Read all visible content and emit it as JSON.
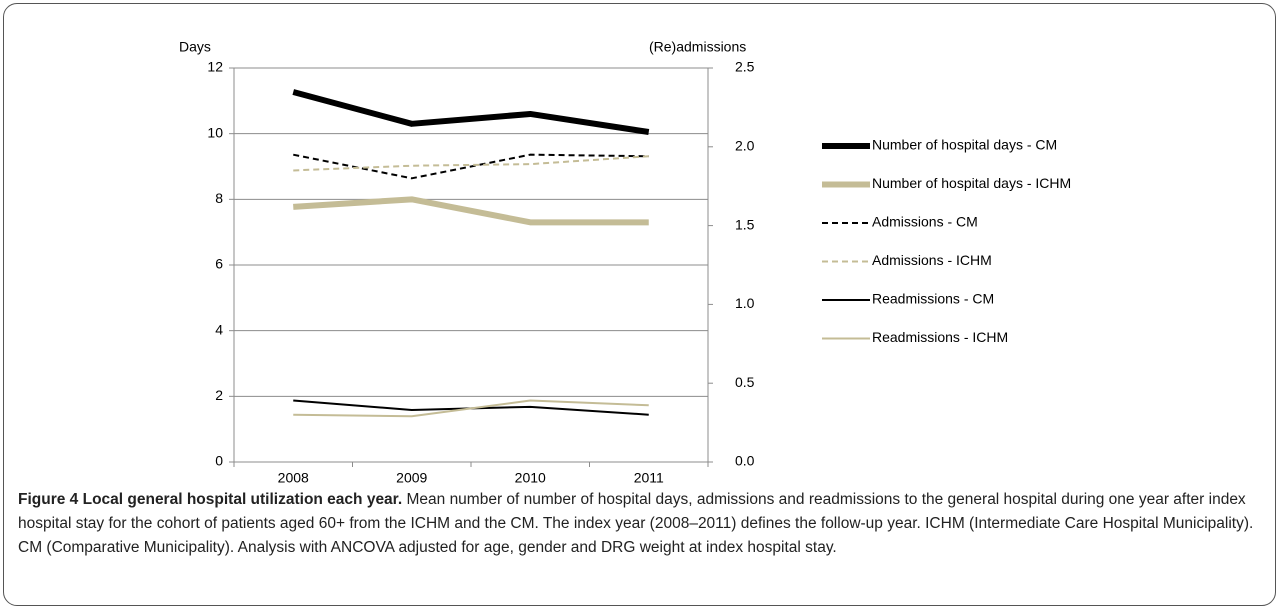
{
  "chart_data": {
    "type": "line",
    "caption_title": "Figure 4 Local general hospital utilization each year.",
    "caption": "Mean number of number of hospital days, admissions and readmissions to the general hospital during one year after index hospital stay for the cohort of patients aged 60+ from the ICHM and the CM. The index year (2008–2011) defines the follow-up year. ICHM (Intermediate Care Hospital Municipality). CM (Comparative Municipality). Analysis with ANCOVA adjusted for age, gender and DRG weight at index hospital stay.",
    "y_label": "Days",
    "y2_label": "(Re)admissions",
    "categories": [
      "2008",
      "2009",
      "2010",
      "2011"
    ],
    "ylim": [
      0,
      12
    ],
    "yticks": [
      0,
      2,
      4,
      6,
      8,
      10,
      12
    ],
    "y2lim": [
      0,
      2.5
    ],
    "y2ticks": [
      {
        "value": 0,
        "label": "0.0"
      },
      0.5,
      {
        "value": 1,
        "label": "1.0"
      },
      1.5,
      {
        "value": 2,
        "label": "2.0"
      },
      2.5
    ],
    "grid": true,
    "legend": "right",
    "series": [
      {
        "name": "Number of hospital days - CM",
        "color": "#000000",
        "width": 6,
        "dash": false,
        "values": [
          11.27,
          10.3,
          10.6,
          10.05
        ]
      },
      {
        "name": "Number of hospital days - ICHM",
        "color": "#c4bc96",
        "width": 6,
        "dash": false,
        "values": [
          7.77,
          8.0,
          7.3,
          7.3
        ]
      },
      {
        "name": "Admissions - CM",
        "color": "#000000",
        "width": 2,
        "dash": true,
        "axis": "y2",
        "values": [
          1.95,
          1.8,
          1.95,
          1.94
        ]
      },
      {
        "name": "Admissions - ICHM",
        "color": "#c4bc96",
        "width": 2,
        "dash": true,
        "axis": "y2",
        "values": [
          1.85,
          1.88,
          1.89,
          1.94
        ]
      },
      {
        "name": "Readmissions - CM",
        "color": "#000000",
        "width": 2,
        "dash": false,
        "axis": "y2",
        "values": [
          0.39,
          0.33,
          0.35,
          0.3
        ]
      },
      {
        "name": "Readmissions - ICHM",
        "color": "#c4bc96",
        "width": 2,
        "dash": false,
        "axis": "y2",
        "values": [
          0.3,
          0.29,
          0.39,
          0.36
        ]
      }
    ]
  }
}
